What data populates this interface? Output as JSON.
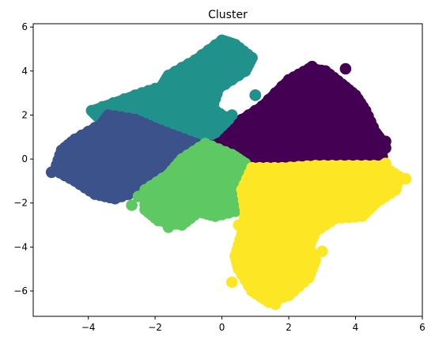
{
  "chart_data": {
    "type": "scatter",
    "title": "Cluster",
    "xlabel": "",
    "ylabel": "",
    "xlim": [
      -5.65,
      6.0
    ],
    "ylim": [
      -7.15,
      6.15
    ],
    "xticks": [
      -4,
      -2,
      0,
      2,
      4,
      6
    ],
    "yticks": [
      -6,
      -4,
      -2,
      0,
      2,
      4,
      6
    ],
    "xtick_labels": [
      "−4",
      "−2",
      "0",
      "2",
      "4",
      "6"
    ],
    "ytick_labels": [
      "−6",
      "−4",
      "−2",
      "0",
      "2",
      "4",
      "6"
    ],
    "grid": false,
    "legend": "none",
    "marker_radius_data_units": 0.15,
    "clusters": [
      {
        "color": "#440154",
        "outline": [
          [
            -0.5,
            0.8
          ],
          [
            0.4,
            1.6
          ],
          [
            1.2,
            2.4
          ],
          [
            2.0,
            3.6
          ],
          [
            2.6,
            4.1
          ],
          [
            3.1,
            4.0
          ],
          [
            3.6,
            3.4
          ],
          [
            4.0,
            2.9
          ],
          [
            4.3,
            2.2
          ],
          [
            4.6,
            1.2
          ],
          [
            4.8,
            0.8
          ],
          [
            4.9,
            0.5
          ],
          [
            4.6,
            0.1
          ],
          [
            3.2,
            -0.2
          ],
          [
            2.2,
            -0.4
          ],
          [
            1.4,
            -0.4
          ],
          [
            0.6,
            -0.3
          ],
          [
            -0.2,
            0.2
          ]
        ],
        "outliers": [
          [
            2.7,
            4.2
          ],
          [
            3.7,
            4.1
          ],
          [
            4.4,
            1.6
          ],
          [
            4.9,
            0.8
          ],
          [
            4.8,
            0.1
          ],
          [
            1.0,
            2.9
          ]
        ]
      },
      {
        "color": "#21918c",
        "outline": [
          [
            -3.9,
            2.2
          ],
          [
            -2.6,
            2.9
          ],
          [
            -1.8,
            3.3
          ],
          [
            -1.6,
            3.8
          ],
          [
            -0.8,
            4.5
          ],
          [
            0.0,
            5.4
          ],
          [
            0.4,
            5.2
          ],
          [
            0.9,
            4.6
          ],
          [
            0.7,
            4.0
          ],
          [
            -0.1,
            3.2
          ],
          [
            -0.3,
            2.3
          ],
          [
            0.2,
            1.8
          ],
          [
            -0.2,
            1.2
          ],
          [
            -0.6,
            0.9
          ],
          [
            -1.6,
            1.4
          ],
          [
            -2.6,
            1.8
          ],
          [
            -3.7,
            1.9
          ]
        ],
        "outliers": [
          [
            1.0,
            2.9
          ],
          [
            0.3,
            2.0
          ]
        ]
      },
      {
        "color": "#3b528b",
        "outline": [
          [
            -5.0,
            -0.5
          ],
          [
            -4.8,
            0.4
          ],
          [
            -4.4,
            0.9
          ],
          [
            -3.6,
            1.6
          ],
          [
            -3.4,
            2.0
          ],
          [
            -2.6,
            1.8
          ],
          [
            -2.0,
            1.4
          ],
          [
            -1.3,
            1.0
          ],
          [
            -0.6,
            0.6
          ],
          [
            -0.8,
            0.0
          ],
          [
            -1.6,
            -0.8
          ],
          [
            -2.4,
            -1.4
          ],
          [
            -3.2,
            -1.8
          ],
          [
            -3.8,
            -1.6
          ],
          [
            -4.4,
            -1.0
          ]
        ],
        "outliers": [
          [
            -5.1,
            -0.6
          ]
        ]
      },
      {
        "color": "#5ec962",
        "outline": [
          [
            -2.3,
            -1.4
          ],
          [
            -1.6,
            -0.7
          ],
          [
            -1.2,
            0.0
          ],
          [
            -0.5,
            0.7
          ],
          [
            0.3,
            0.2
          ],
          [
            0.7,
            -0.2
          ],
          [
            0.9,
            -0.8
          ],
          [
            0.9,
            -1.6
          ],
          [
            0.6,
            -2.3
          ],
          [
            -0.2,
            -2.6
          ],
          [
            -0.7,
            -2.4
          ],
          [
            -1.2,
            -3.0
          ],
          [
            -1.9,
            -2.8
          ],
          [
            -2.3,
            -2.3
          ]
        ],
        "outliers": [
          [
            -2.7,
            -2.1
          ],
          [
            -2.5,
            -1.7
          ],
          [
            0.8,
            -2.0
          ],
          [
            -1.6,
            -3.1
          ]
        ]
      },
      {
        "color": "#fde725",
        "outline": [
          [
            0.9,
            -0.4
          ],
          [
            1.8,
            -0.4
          ],
          [
            2.8,
            -0.3
          ],
          [
            3.8,
            -0.3
          ],
          [
            4.8,
            -0.3
          ],
          [
            5.3,
            -0.8
          ],
          [
            5.2,
            -1.4
          ],
          [
            4.6,
            -2.0
          ],
          [
            4.2,
            -2.6
          ],
          [
            3.4,
            -2.7
          ],
          [
            2.8,
            -3.3
          ],
          [
            2.6,
            -4.0
          ],
          [
            2.8,
            -4.6
          ],
          [
            2.6,
            -5.4
          ],
          [
            2.0,
            -6.2
          ],
          [
            1.4,
            -6.5
          ],
          [
            0.9,
            -6.0
          ],
          [
            0.5,
            -5.0
          ],
          [
            0.4,
            -4.4
          ],
          [
            0.6,
            -3.4
          ],
          [
            0.7,
            -2.4
          ],
          [
            0.6,
            -1.4
          ]
        ],
        "outliers": [
          [
            5.5,
            -0.9
          ],
          [
            4.9,
            -0.2
          ],
          [
            0.5,
            -3.0
          ],
          [
            0.3,
            -5.6
          ],
          [
            3.0,
            -4.2
          ],
          [
            1.6,
            -6.6
          ]
        ]
      }
    ]
  }
}
